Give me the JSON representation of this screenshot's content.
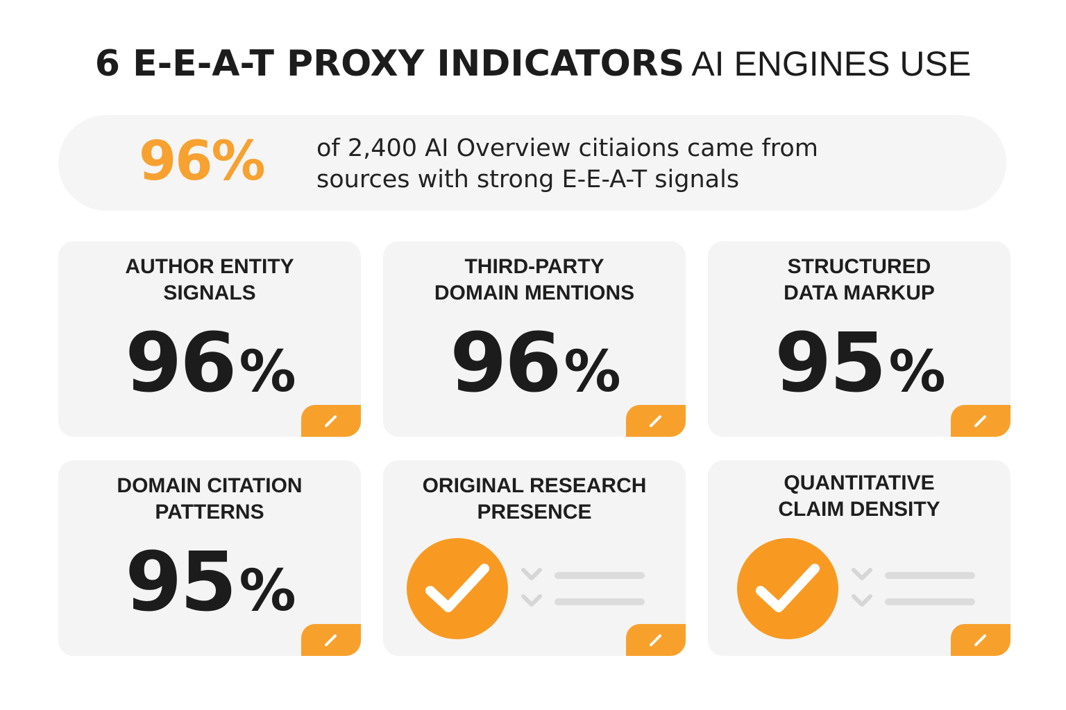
{
  "header": {
    "title_bold": "6 E-E-A-T PROXY INDICATORS",
    "title_light": "AI ENGINES USE"
  },
  "banner": {
    "percent": "96%",
    "line1": "of 2,400 AI Overview citiaions came from",
    "line2": "sources with strong E-E-A-T signals"
  },
  "cards": [
    {
      "title_line1": "AUTHOR ENTITY",
      "title_line2": "SIGNALS",
      "number": "96",
      "percent_sign": "%"
    },
    {
      "title_line1": "THIRD-PARTY",
      "title_line2": "DOMAIN MENTIONS",
      "number": "96",
      "percent_sign": "%"
    },
    {
      "title_line1": "STRUCTURED",
      "title_line2": "DATA MARKUP",
      "number": "95",
      "percent_sign": "%"
    },
    {
      "title_line1": "DOMAIN CITATION",
      "title_line2": "PATTERNS",
      "number": "95",
      "percent_sign": "%"
    },
    {
      "title_line1": "ORIGINAL RESEARCH",
      "title_line2": "PRESENCE",
      "icon": "check-circle-icon"
    },
    {
      "title_line1": "QUANTITATIVE",
      "title_line2": "CLAIM DENSITY",
      "icon": "check-circle-icon"
    }
  ],
  "colors": {
    "accent": "#f7a130",
    "card_bg": "#f4f4f4",
    "banner_bg": "#f5f5f5",
    "text_dark": "#1c1c1c"
  }
}
